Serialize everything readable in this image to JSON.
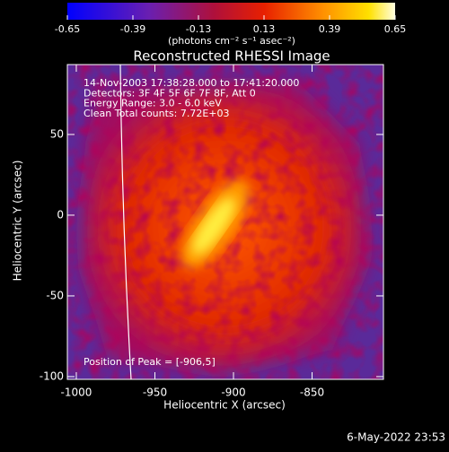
{
  "chart_data": {
    "type": "image",
    "title": "Reconstructed RHESSI Image",
    "xlabel": "Heliocentric X (arcsec)",
    "ylabel": "Heliocentric Y (arcsec)",
    "xlim": [
      -1005.7,
      -804.6
    ],
    "ylim": [
      -101.7,
      93.3
    ],
    "xticks": [
      -1000,
      -950,
      -900,
      -850
    ],
    "yticks": [
      -100,
      -50,
      0,
      50
    ],
    "colorbar": {
      "lim": [
        -0.65,
        0.65
      ],
      "ticks": [
        -0.65,
        -0.39,
        -0.13,
        0.13,
        0.39,
        0.65
      ],
      "label": "(photons cm⁻² s⁻¹ asec⁻²)"
    },
    "annotations": [
      "14-Nov-2003 17:38:28.000 to 17:41:20.000",
      "Detectors: 3F 4F 5F 6F 7F 8F, Att 0",
      "Energy Range: 3.0 - 6.0 keV",
      "Clean     Total counts: 7.72E+03"
    ],
    "peak_label": "Position of Peak = [-906,5]",
    "footer": "6-May-2022 23:53"
  }
}
